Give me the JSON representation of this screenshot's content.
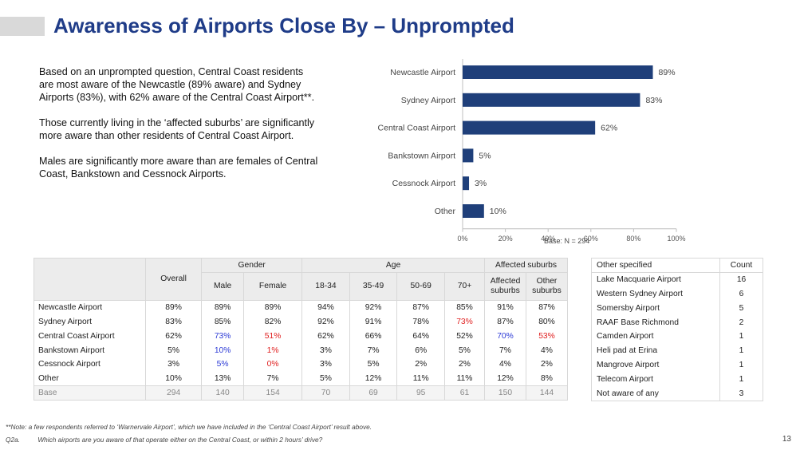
{
  "slide": {
    "title": "Awareness of Airports Close By – Unprompted",
    "summary": [
      "Based on an unprompted question, Central Coast residents are most aware of the Newcastle (89% aware) and Sydney Airports (83%), with 62% aware of the Central Coast Airport**.",
      "Those currently living in the ‘affected suburbs’ are significantly more aware than other residents of Central Coast Airport.",
      "Males are significantly more aware than are females of Central Coast, Bankstown and Cessnock Airports."
    ],
    "base_note": "Base: N = 294",
    "footnote": "**Note: a few respondents referred to ‘Warnervale Airport’, which we have included in the ‘Central Coast Airport’ result above.",
    "question_code": "Q2a.",
    "question_text": "Which airports are you aware of that operate either on the Central Coast, or within 2 hours’ drive?",
    "page_number": "13"
  },
  "chart_data": {
    "type": "bar",
    "orientation": "horizontal",
    "categories": [
      "Newcastle Airport",
      "Sydney Airport",
      "Central Coast Airport",
      "Bankstown Airport",
      "Cessnock Airport",
      "Other"
    ],
    "values": [
      89,
      83,
      62,
      5,
      3,
      10
    ],
    "value_labels": [
      "89%",
      "83%",
      "62%",
      "5%",
      "3%",
      "10%"
    ],
    "xlim": [
      0,
      100
    ],
    "xticks": [
      0,
      20,
      40,
      60,
      80,
      100
    ],
    "xtick_labels": [
      "0%",
      "20%",
      "40%",
      "60%",
      "80%",
      "100%"
    ],
    "bar_color": "#1f3f7a",
    "grid": false,
    "title": "",
    "xlabel": "",
    "ylabel": ""
  },
  "table": {
    "groups": {
      "gender": "Gender",
      "age": "Age",
      "affected": "Affected suburbs"
    },
    "columns": [
      "Overall",
      "Male",
      "Female",
      "18-34",
      "35-49",
      "50-69",
      "70+",
      "Affected suburbs",
      "Other suburbs"
    ],
    "rows": [
      {
        "label": "Newcastle Airport",
        "values": [
          "89%",
          "89%",
          "89%",
          "94%",
          "92%",
          "87%",
          "85%",
          "91%",
          "87%"
        ],
        "flags": [
          "",
          "",
          "",
          "",
          "",
          "",
          "",
          "",
          ""
        ]
      },
      {
        "label": "Sydney Airport",
        "values": [
          "83%",
          "85%",
          "82%",
          "92%",
          "91%",
          "78%",
          "73%",
          "87%",
          "80%"
        ],
        "flags": [
          "",
          "",
          "",
          "",
          "",
          "",
          "lo",
          "",
          ""
        ]
      },
      {
        "label": "Central Coast Airport",
        "values": [
          "62%",
          "73%",
          "51%",
          "62%",
          "66%",
          "64%",
          "52%",
          "70%",
          "53%"
        ],
        "flags": [
          "",
          "hi",
          "lo",
          "",
          "",
          "",
          "",
          "hi",
          "lo"
        ]
      },
      {
        "label": "Bankstown Airport",
        "values": [
          "5%",
          "10%",
          "1%",
          "3%",
          "7%",
          "6%",
          "5%",
          "7%",
          "4%"
        ],
        "flags": [
          "",
          "hi",
          "lo",
          "",
          "",
          "",
          "",
          "",
          ""
        ]
      },
      {
        "label": "Cessnock Airport",
        "values": [
          "3%",
          "5%",
          "0%",
          "3%",
          "5%",
          "2%",
          "2%",
          "4%",
          "2%"
        ],
        "flags": [
          "",
          "hi",
          "lo",
          "",
          "",
          "",
          "",
          "",
          ""
        ]
      },
      {
        "label": "Other",
        "values": [
          "10%",
          "13%",
          "7%",
          "5%",
          "12%",
          "11%",
          "11%",
          "12%",
          "8%"
        ],
        "flags": [
          "",
          "",
          "",
          "",
          "",
          "",
          "",
          "",
          ""
        ]
      }
    ],
    "base": {
      "label": "Base",
      "values": [
        "294",
        "140",
        "154",
        "70",
        "69",
        "95",
        "61",
        "150",
        "144"
      ]
    },
    "colors": {
      "significantly_higher": "#2d3bd6",
      "significantly_lower": "#e02020"
    }
  },
  "other_specified": {
    "headers": {
      "name": "Other specified",
      "count": "Count"
    },
    "rows": [
      {
        "name": "Lake Macquarie Airport",
        "count": "16"
      },
      {
        "name": "Western Sydney Airport",
        "count": "6"
      },
      {
        "name": "Somersby Airport",
        "count": "5"
      },
      {
        "name": "RAAF Base Richmond",
        "count": "2"
      },
      {
        "name": "Camden Airport",
        "count": "1"
      },
      {
        "name": "Heli pad at Erina",
        "count": "1"
      },
      {
        "name": "Mangrove Airport",
        "count": "1"
      },
      {
        "name": "Telecom Airport",
        "count": "1"
      },
      {
        "name": "Not aware of any",
        "count": "3"
      }
    ]
  }
}
